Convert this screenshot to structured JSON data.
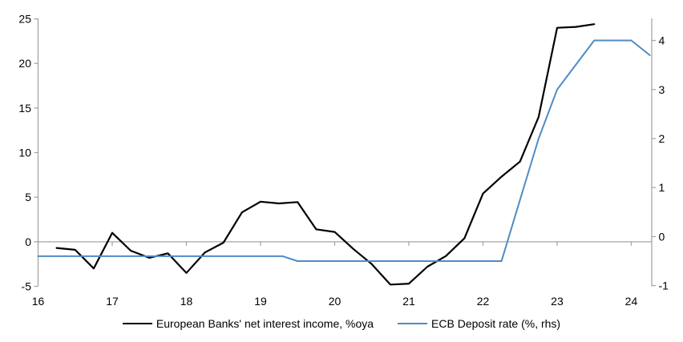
{
  "chart_data": {
    "type": "line",
    "title": "",
    "x_axis": {
      "tick_labels": [
        "16",
        "17",
        "18",
        "19",
        "20",
        "21",
        "22",
        "23",
        "24"
      ],
      "tick_values": [
        16,
        17,
        18,
        19,
        20,
        21,
        22,
        23,
        24
      ],
      "range": [
        16,
        24.276
      ]
    },
    "left_axis": {
      "tick_labels": [
        "25",
        "20",
        "15",
        "10",
        "5",
        "0",
        "-5"
      ],
      "tick_values": [
        25,
        20,
        15,
        10,
        5,
        0,
        -5
      ],
      "range": [
        -5,
        25.05
      ]
    },
    "right_axis": {
      "tick_labels": [
        "4",
        "3",
        "2",
        "1",
        "0",
        "-1"
      ],
      "tick_values": [
        4,
        3,
        2,
        1,
        0,
        -1
      ],
      "range": [
        -1.015,
        4.45
      ]
    },
    "grid": "zero-line-only",
    "legend_position": "bottom-center",
    "colors": {
      "axis": "#a6a6a6",
      "text": "#000000"
    },
    "series": [
      {
        "id": "european-banks-nii-line",
        "name": "European Banks' net interest income, %oya",
        "axis": "left",
        "color": "#000000",
        "stroke_width": 2.2,
        "points": [
          [
            16.25,
            -0.7
          ],
          [
            16.5,
            -0.9
          ],
          [
            16.75,
            -3.0
          ],
          [
            17,
            1.0
          ],
          [
            17.25,
            -1.0
          ],
          [
            17.5,
            -1.8
          ],
          [
            17.75,
            -1.3
          ],
          [
            18,
            -3.5
          ],
          [
            18.25,
            -1.2
          ],
          [
            18.5,
            -0.1
          ],
          [
            18.75,
            3.3
          ],
          [
            19,
            4.5
          ],
          [
            19.25,
            4.3
          ],
          [
            19.5,
            4.45
          ],
          [
            19.75,
            1.4
          ],
          [
            20,
            1.1
          ],
          [
            20.25,
            -0.8
          ],
          [
            20.5,
            -2.5
          ],
          [
            20.75,
            -4.8
          ],
          [
            21,
            -4.7
          ],
          [
            21.25,
            -2.8
          ],
          [
            21.5,
            -1.6
          ],
          [
            21.75,
            0.4
          ],
          [
            22,
            5.4
          ],
          [
            22.25,
            7.3
          ],
          [
            22.5,
            9.0
          ],
          [
            22.75,
            14.0
          ],
          [
            23,
            24.0
          ],
          [
            23.25,
            24.1
          ],
          [
            23.5,
            24.4
          ]
        ]
      },
      {
        "id": "ecb-deposit-rate-line",
        "name": "ECB Deposit rate (%, rhs)",
        "axis": "right",
        "color": "#4e8bc4",
        "stroke_width": 2,
        "points": [
          [
            16,
            -0.4
          ],
          [
            19.3,
            -0.4
          ],
          [
            19.5,
            -0.5
          ],
          [
            22.25,
            -0.5
          ],
          [
            22.5,
            0.75
          ],
          [
            22.75,
            2.0
          ],
          [
            23,
            3.0
          ],
          [
            23.25,
            3.5
          ],
          [
            23.5,
            4.0
          ],
          [
            24,
            4.0
          ],
          [
            24.25,
            3.7
          ]
        ]
      }
    ]
  }
}
